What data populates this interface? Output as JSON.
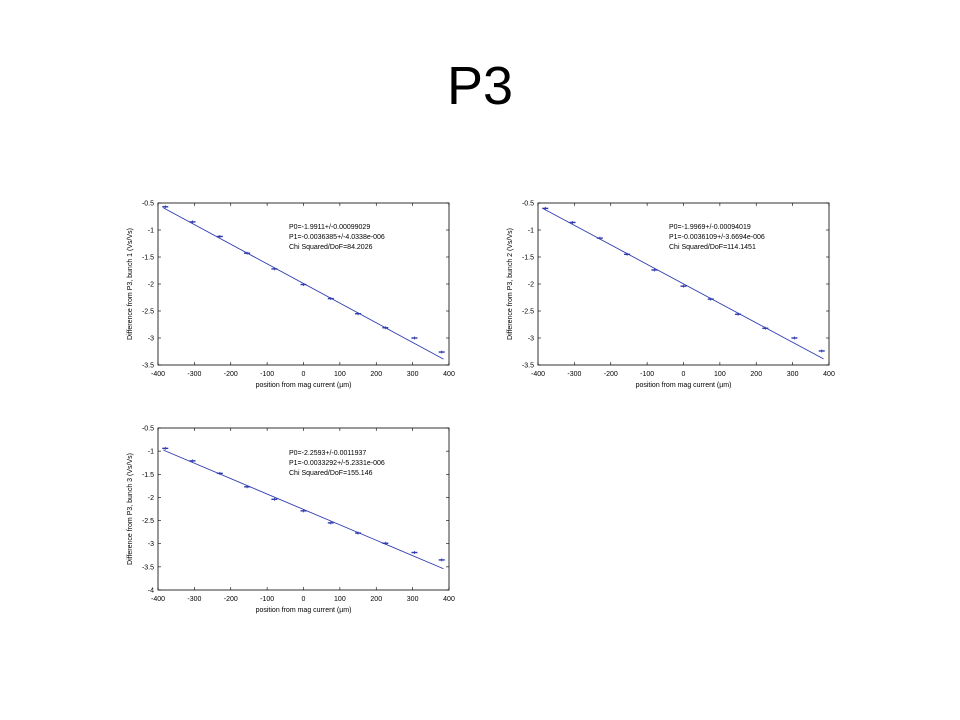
{
  "slide": {
    "title": "P3"
  },
  "chart_data": [
    {
      "type": "scatter",
      "xlabel": "position from mag current (µm)",
      "ylabel": "Difference from P3, bunch 1 (Vs/Vs)",
      "xlim": [
        -400,
        400
      ],
      "ylim": [
        -3.5,
        -0.5
      ],
      "xticks": [
        "-400",
        "-300",
        "-200",
        "-100",
        "0",
        "100",
        "200",
        "300",
        "400"
      ],
      "yticks": [
        "-0.5",
        "-1",
        "-1.5",
        "-2",
        "-2.5",
        "-3",
        "-3.5"
      ],
      "annotations": [
        "P0=-1.9911+/-0.00099029",
        "P1=-0.0036385+/-4.0338e-006",
        "Chi Squared/DoF=84.2026"
      ],
      "fit": {
        "p0": -1.9911,
        "p1": -0.0036385
      },
      "x": [
        -380,
        -305,
        -230,
        -155,
        -80,
        0,
        75,
        150,
        225,
        305,
        380
      ],
      "y": [
        -0.57,
        -0.85,
        -1.12,
        -1.43,
        -1.72,
        -2.01,
        -2.27,
        -2.55,
        -2.81,
        -3.0,
        -3.26
      ],
      "line_color": "#2f3bb0"
    },
    {
      "type": "scatter",
      "xlabel": "position from mag current (µm)",
      "ylabel": "Difference from P3, bunch 2 (Vs/Vs)",
      "xlim": [
        -400,
        400
      ],
      "ylim": [
        -3.5,
        -0.5
      ],
      "xticks": [
        "-400",
        "-300",
        "-200",
        "-100",
        "0",
        "100",
        "200",
        "300",
        "400"
      ],
      "yticks": [
        "-0.5",
        "-1",
        "-1.5",
        "-2",
        "-2.5",
        "-3",
        "-3.5"
      ],
      "annotations": [
        "P0=-1.9969+/-0.00094019",
        "P1=-0.0036109+/-3.6694e-006",
        "Chi Squared/DoF=114.1451"
      ],
      "fit": {
        "p0": -1.9969,
        "p1": -0.0036109
      },
      "x": [
        -380,
        -305,
        -230,
        -155,
        -80,
        0,
        75,
        150,
        225,
        305,
        380
      ],
      "y": [
        -0.6,
        -0.86,
        -1.15,
        -1.45,
        -1.74,
        -2.04,
        -2.28,
        -2.56,
        -2.82,
        -3.0,
        -3.24
      ],
      "line_color": "#2f3bb0"
    },
    {
      "type": "scatter",
      "xlabel": "position from mag current (µm)",
      "ylabel": "Difference from P3, bunch 3 (Vs/Vs)",
      "xlim": [
        -400,
        400
      ],
      "ylim": [
        -4,
        -0.5
      ],
      "xticks": [
        "-400",
        "-300",
        "-200",
        "-100",
        "0",
        "100",
        "200",
        "300",
        "400"
      ],
      "yticks": [
        "-0.5",
        "-1",
        "-1.5",
        "-2",
        "-2.5",
        "-3",
        "-3.5",
        "-4"
      ],
      "annotations": [
        "P0=-2.2593+/-0.0011937",
        "P1=-0.0033292+/-5.2331e-006",
        "Chi Squared/DoF=155.146"
      ],
      "fit": {
        "p0": -2.2593,
        "p1": -0.0033292
      },
      "x": [
        -380,
        -305,
        -230,
        -155,
        -80,
        0,
        75,
        150,
        225,
        305,
        380
      ],
      "y": [
        -0.94,
        -1.21,
        -1.48,
        -1.77,
        -2.04,
        -2.29,
        -2.55,
        -2.77,
        -2.99,
        -3.19,
        -3.35
      ],
      "line_color": "#2f3bb0"
    }
  ]
}
